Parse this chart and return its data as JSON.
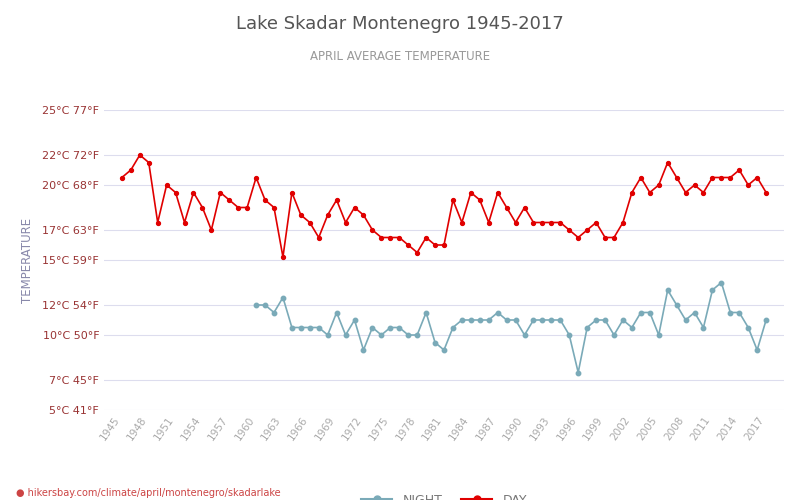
{
  "title": "Lake Skadar Montenegro 1945-2017",
  "subtitle": "APRIL AVERAGE TEMPERATURE",
  "ylabel": "TEMPERATURE",
  "footer": "hikersbay.com/climate/april/montenegro/skadarlake",
  "ylim_celsius": [
    5,
    25
  ],
  "yticks_celsius": [
    5,
    7,
    10,
    12,
    15,
    17,
    20,
    22,
    25
  ],
  "yticks_fahrenheit": [
    41,
    45,
    50,
    54,
    59,
    63,
    68,
    72,
    77
  ],
  "years": [
    1945,
    1946,
    1947,
    1948,
    1949,
    1950,
    1951,
    1952,
    1953,
    1954,
    1955,
    1956,
    1957,
    1958,
    1959,
    1960,
    1961,
    1962,
    1963,
    1964,
    1965,
    1966,
    1967,
    1968,
    1969,
    1970,
    1971,
    1972,
    1973,
    1974,
    1975,
    1976,
    1977,
    1978,
    1979,
    1980,
    1981,
    1982,
    1983,
    1984,
    1985,
    1986,
    1987,
    1988,
    1989,
    1990,
    1991,
    1992,
    1993,
    1994,
    1995,
    1996,
    1997,
    1998,
    1999,
    2000,
    2001,
    2002,
    2003,
    2004,
    2005,
    2006,
    2007,
    2008,
    2009,
    2010,
    2011,
    2012,
    2013,
    2014,
    2015,
    2016,
    2017
  ],
  "day_temps": [
    20.5,
    21.0,
    22.0,
    21.5,
    17.5,
    20.0,
    19.5,
    17.5,
    19.5,
    18.5,
    17.0,
    19.5,
    19.0,
    18.5,
    18.5,
    20.5,
    19.0,
    18.5,
    15.2,
    19.5,
    18.0,
    17.5,
    16.5,
    18.0,
    19.0,
    17.5,
    18.5,
    18.0,
    17.0,
    16.5,
    16.5,
    16.5,
    16.0,
    15.5,
    16.5,
    16.0,
    16.0,
    19.0,
    17.5,
    19.5,
    19.0,
    17.5,
    19.5,
    18.5,
    17.5,
    18.5,
    17.5,
    17.5,
    17.5,
    17.5,
    17.0,
    16.5,
    17.0,
    17.5,
    16.5,
    16.5,
    17.5,
    19.5,
    20.5,
    19.5,
    20.0,
    21.5,
    20.5,
    19.5,
    20.0,
    19.5,
    20.5,
    20.5,
    20.5,
    21.0,
    20.0,
    20.5,
    19.5
  ],
  "night_temps": [
    null,
    null,
    null,
    null,
    null,
    null,
    null,
    null,
    null,
    null,
    null,
    null,
    null,
    null,
    null,
    12.0,
    12.0,
    11.5,
    12.5,
    10.5,
    10.5,
    10.5,
    10.5,
    10.0,
    11.5,
    10.0,
    11.0,
    9.0,
    10.5,
    10.0,
    10.5,
    10.5,
    10.0,
    10.0,
    11.5,
    9.5,
    9.0,
    10.5,
    11.0,
    11.0,
    11.0,
    11.0,
    11.5,
    11.0,
    11.0,
    10.0,
    11.0,
    11.0,
    11.0,
    11.0,
    10.0,
    7.5,
    10.5,
    11.0,
    11.0,
    10.0,
    11.0,
    10.5,
    11.5,
    11.5,
    10.0,
    13.0,
    12.0,
    11.0,
    11.5,
    10.5,
    13.0,
    13.5,
    11.5,
    11.5,
    10.5,
    9.0,
    11.0
  ],
  "day_color": "#e00000",
  "night_color": "#7aaab8",
  "title_color": "#555555",
  "subtitle_color": "#999999",
  "ylabel_color": "#8888aa",
  "tick_label_color": "#993333",
  "xtick_label_color": "#aaaaaa",
  "grid_color": "#ddddee",
  "background_color": "#ffffff",
  "footer_color": "#cc4444"
}
